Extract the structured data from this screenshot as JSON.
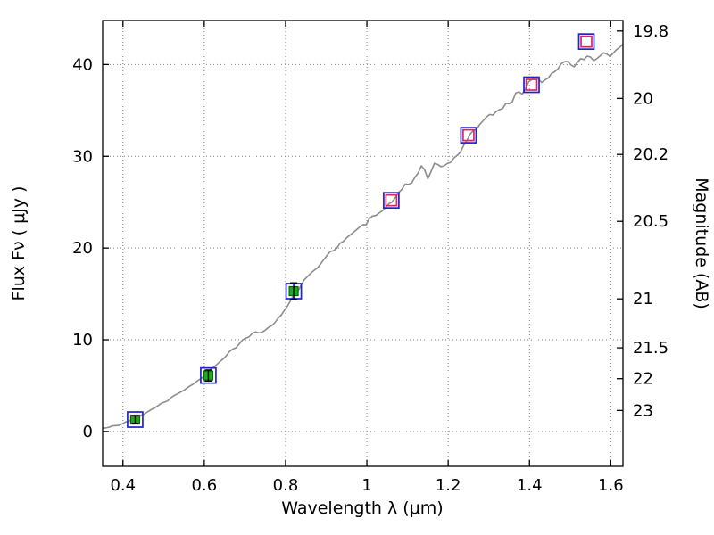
{
  "chart_data": {
    "type": "line",
    "title": "",
    "xlabel": "Wavelength  λ (μm)",
    "ylabel": "Flux  Fν  ( μJy )",
    "ylabel_right": "Magnitude (AB)",
    "xlim": [
      0.35,
      1.63
    ],
    "ylim": [
      -3.8,
      44.8
    ],
    "grid": true,
    "x_ticks": [
      0.4,
      0.6,
      0.8,
      1.0,
      1.2,
      1.4,
      1.6
    ],
    "x_tick_labels": [
      "0.4",
      "0.6",
      "0.8",
      "1",
      "1.2",
      "1.4",
      "1.6"
    ],
    "y_ticks": [
      0,
      10,
      20,
      30,
      40
    ],
    "y_tick_labels": [
      "0",
      "10",
      "20",
      "30",
      "40"
    ],
    "right_axis": {
      "label": "Magnitude (AB)",
      "zeropoint_ab": 23.9,
      "tick_labels": [
        "19.8",
        "20",
        "20.2",
        "20.5",
        "21",
        "21.5",
        "22",
        "23"
      ]
    },
    "colors": {
      "spectrum": "#8c8c8c",
      "grid": "#808080",
      "frame": "#000000",
      "blue_square": "#2222cc",
      "magenta_square": "#d62963",
      "green_fill": "#1faa1f",
      "green_edge": "#0a660a",
      "errorbar": "#000000"
    },
    "noise": {
      "seed": 12,
      "base": 0.1,
      "flux_scale": 0.015,
      "step": 0.008
    },
    "series": [
      {
        "name": "model-spectrum",
        "type": "line",
        "color": "#8c8c8c",
        "x": [
          0.35,
          0.38,
          0.4,
          0.42,
          0.44,
          0.46,
          0.48,
          0.5,
          0.52,
          0.54,
          0.56,
          0.58,
          0.6,
          0.62,
          0.64,
          0.66,
          0.68,
          0.7,
          0.72,
          0.74,
          0.76,
          0.78,
          0.8,
          0.82,
          0.84,
          0.86,
          0.88,
          0.9,
          0.92,
          0.94,
          0.96,
          0.98,
          1.0,
          1.02,
          1.04,
          1.06,
          1.08,
          1.1,
          1.12,
          1.135,
          1.15,
          1.165,
          1.18,
          1.2,
          1.22,
          1.235,
          1.25,
          1.27,
          1.29,
          1.31,
          1.33,
          1.35,
          1.37,
          1.39,
          1.41,
          1.43,
          1.45,
          1.48,
          1.51,
          1.54,
          1.57,
          1.6,
          1.63
        ],
        "y": [
          0.4,
          0.6,
          0.9,
          1.2,
          1.6,
          2.1,
          2.6,
          3.1,
          3.7,
          4.3,
          4.9,
          5.5,
          6.1,
          6.9,
          7.7,
          8.6,
          9.4,
          10.2,
          10.8,
          10.9,
          11.3,
          12.2,
          13.5,
          14.9,
          16.2,
          17.2,
          18.2,
          18.9,
          19.8,
          20.6,
          21.4,
          22.2,
          22.9,
          23.6,
          24.2,
          25.0,
          25.9,
          26.8,
          27.8,
          29.0,
          27.9,
          29.3,
          28.6,
          29.6,
          30.0,
          31.0,
          32.3,
          33.2,
          34.0,
          34.8,
          35.4,
          35.9,
          36.8,
          37.4,
          38.3,
          38.6,
          39.2,
          39.9,
          40.4,
          40.8,
          41.1,
          41.5,
          41.9
        ]
      },
      {
        "name": "synthetic-photometry-blue-squares",
        "type": "open-square",
        "color": "#2222cc",
        "size": 17,
        "x": [
          0.43,
          0.61,
          0.82,
          1.06,
          1.25,
          1.405,
          1.54
        ],
        "y": [
          1.3,
          6.1,
          15.3,
          25.2,
          32.3,
          37.8,
          42.5
        ]
      },
      {
        "name": "model-photometry-magenta-squares",
        "type": "open-square",
        "color": "#d62963",
        "size": 12,
        "x": [
          1.06,
          1.25,
          1.405,
          1.54
        ],
        "y": [
          25.2,
          32.3,
          37.8,
          42.5
        ]
      },
      {
        "name": "observed-photometry-green-squares",
        "type": "filled-square",
        "color": "#1faa1f",
        "edge": "#0a660a",
        "size": 10,
        "x": [
          0.43,
          0.61,
          0.82
        ],
        "y": [
          1.3,
          6.1,
          15.3
        ],
        "yerr": [
          0.4,
          0.6,
          0.9
        ],
        "errorbar_color": "#000000"
      }
    ]
  }
}
